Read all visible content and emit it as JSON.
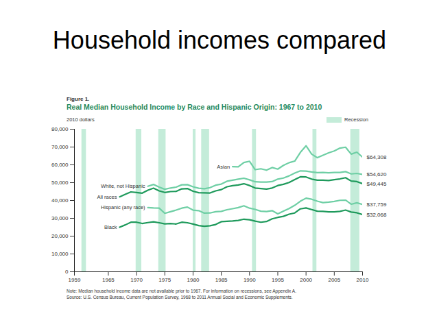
{
  "page_title": "Household incomes compared",
  "chart_data": {
    "type": "line",
    "figure_label": "Figure 1.",
    "title": "Real Median Household Income by Race and Hispanic Origin: 1967 to 2010",
    "ylabel": "2010 dollars",
    "x": [
      1967,
      1968,
      1969,
      1970,
      1971,
      1972,
      1973,
      1974,
      1975,
      1976,
      1977,
      1978,
      1979,
      1980,
      1981,
      1982,
      1983,
      1984,
      1985,
      1986,
      1987,
      1988,
      1989,
      1990,
      1991,
      1992,
      1993,
      1994,
      1995,
      1996,
      1997,
      1998,
      1999,
      2000,
      2001,
      2002,
      2003,
      2004,
      2005,
      2006,
      2007,
      2008,
      2009,
      2010
    ],
    "xlim": [
      1959,
      2010
    ],
    "xticks": [
      1959,
      1965,
      1970,
      1975,
      1980,
      1985,
      1990,
      1995,
      2000,
      2005,
      2010
    ],
    "ylim": [
      0,
      80000
    ],
    "yticks": [
      0,
      {
        "value": 10000,
        "label": "10,000"
      },
      {
        "value": 20000,
        "label": "20,000"
      },
      {
        "value": 30000,
        "label": "30,000"
      },
      {
        "value": 40000,
        "label": "40,000"
      },
      {
        "value": 50000,
        "label": "50,000"
      },
      {
        "value": 60000,
        "label": "60,000"
      },
      {
        "value": 70000,
        "label": "70,000"
      },
      {
        "value": 80000,
        "label": "80,000"
      }
    ],
    "grid": false,
    "legend": "top-right",
    "data_labels": true,
    "recessions": {
      "name": "Recession",
      "color": "#c4ecd9",
      "periods": [
        [
          1960.3,
          1961.1
        ],
        [
          1969.9,
          1970.9
        ],
        [
          1973.9,
          1975.2
        ],
        [
          1980.0,
          1980.5
        ],
        [
          1981.5,
          1982.9
        ],
        [
          1990.5,
          1991.2
        ],
        [
          2001.2,
          2001.9
        ],
        [
          2007.9,
          2009.5
        ]
      ]
    },
    "series": [
      {
        "name": "Asian",
        "color": "#6fcfa5",
        "values": [
          null,
          null,
          null,
          null,
          null,
          null,
          null,
          null,
          null,
          null,
          null,
          null,
          null,
          null,
          null,
          null,
          null,
          null,
          null,
          null,
          59000,
          58900,
          61300,
          62000,
          57300,
          57800,
          57000,
          58500,
          57600,
          59700,
          61200,
          62100,
          67000,
          70700,
          66000,
          64000,
          65400,
          66700,
          67800,
          69400,
          69900,
          66000,
          67100,
          64308
        ],
        "value_labels": [
          null,
          null,
          null,
          null,
          null,
          null,
          null,
          null,
          null,
          null,
          null,
          null,
          null,
          null,
          null,
          null,
          null,
          null,
          null,
          null,
          null,
          null,
          null,
          null,
          null,
          null,
          null,
          null,
          null,
          null,
          null,
          null,
          null,
          null,
          null,
          null,
          null,
          null,
          null,
          null,
          null,
          null,
          null,
          "$64,308"
        ]
      },
      {
        "name": "White, not Hispanic",
        "color": "#6fcfa5",
        "values": [
          null,
          null,
          null,
          null,
          null,
          48000,
          49000,
          47500,
          46300,
          47000,
          47500,
          48800,
          48900,
          47700,
          46900,
          46600,
          47200,
          48600,
          49200,
          50800,
          51400,
          52000,
          52500,
          51600,
          50500,
          50300,
          50300,
          50600,
          52000,
          52600,
          53800,
          55400,
          56600,
          56500,
          56000,
          55600,
          55700,
          55500,
          55700,
          55700,
          56200,
          54900,
          55200,
          54620
        ],
        "value_labels": [
          null,
          null,
          null,
          null,
          null,
          null,
          null,
          null,
          null,
          null,
          null,
          null,
          null,
          null,
          null,
          null,
          null,
          null,
          null,
          null,
          null,
          null,
          null,
          null,
          null,
          null,
          null,
          null,
          null,
          null,
          null,
          null,
          null,
          null,
          null,
          null,
          null,
          null,
          null,
          null,
          null,
          null,
          null,
          "$54,620"
        ]
      },
      {
        "name": "All races",
        "color": "#1f9a5c",
        "values": [
          42056,
          43500,
          44800,
          44500,
          44100,
          45800,
          46900,
          45400,
          44500,
          45000,
          45100,
          46500,
          46700,
          45200,
          44400,
          44300,
          44200,
          45400,
          46100,
          47700,
          48300,
          48700,
          49400,
          48400,
          47000,
          46700,
          46400,
          47000,
          48400,
          49100,
          50100,
          51700,
          53300,
          53200,
          52000,
          51400,
          51400,
          51200,
          51700,
          52100,
          52800,
          50900,
          50600,
          49445
        ],
        "value_labels": [
          null,
          null,
          null,
          null,
          null,
          null,
          null,
          null,
          null,
          null,
          null,
          null,
          null,
          null,
          null,
          null,
          null,
          null,
          null,
          null,
          null,
          null,
          null,
          null,
          null,
          null,
          null,
          null,
          null,
          null,
          null,
          null,
          null,
          null,
          null,
          null,
          null,
          null,
          null,
          null,
          null,
          null,
          null,
          "$49,445"
        ]
      },
      {
        "name": "Hispanic (any race)",
        "color": "#6fcfa5",
        "values": [
          null,
          null,
          null,
          null,
          null,
          36000,
          35800,
          35700,
          32800,
          33700,
          34600,
          35700,
          36300,
          34600,
          34300,
          32900,
          33000,
          33700,
          33900,
          34800,
          35400,
          36000,
          37000,
          35700,
          35000,
          34000,
          33800,
          34300,
          32500,
          34000,
          35500,
          37300,
          39600,
          41300,
          40700,
          39600,
          38800,
          39100,
          39500,
          40100,
          40200,
          37900,
          38700,
          37759
        ],
        "value_labels": [
          null,
          null,
          null,
          null,
          null,
          null,
          null,
          null,
          null,
          null,
          null,
          null,
          null,
          null,
          null,
          null,
          null,
          null,
          null,
          null,
          null,
          null,
          null,
          null,
          null,
          null,
          null,
          null,
          null,
          null,
          null,
          null,
          null,
          null,
          null,
          null,
          null,
          null,
          null,
          null,
          null,
          null,
          null,
          "$37,759"
        ]
      },
      {
        "name": "Black",
        "color": "#1f9a5c",
        "values": [
          25000,
          26300,
          27800,
          27800,
          27100,
          27600,
          28000,
          27500,
          26900,
          27100,
          26800,
          27800,
          27500,
          26800,
          25900,
          25500,
          25800,
          26500,
          28100,
          28300,
          28500,
          28800,
          29500,
          29200,
          28400,
          27800,
          28200,
          29700,
          30500,
          31100,
          32300,
          33000,
          35300,
          35800,
          34900,
          34000,
          33900,
          33600,
          33600,
          33900,
          34600,
          33500,
          33100,
          32068
        ],
        "value_labels": [
          null,
          null,
          null,
          null,
          null,
          null,
          null,
          null,
          null,
          null,
          null,
          null,
          null,
          null,
          null,
          null,
          null,
          null,
          null,
          null,
          null,
          null,
          null,
          null,
          null,
          null,
          null,
          null,
          null,
          null,
          null,
          null,
          null,
          null,
          null,
          null,
          null,
          null,
          null,
          null,
          null,
          null,
          null,
          "$32,068"
        ]
      }
    ],
    "notes": [
      "Note: Median household income data are not available prior to 1967. For information on recessions, see Appendix A.",
      "Source: U.S. Census Bureau, Current Population Survey, 1968 to 2011 Annual Social and Economic Supplements."
    ]
  }
}
